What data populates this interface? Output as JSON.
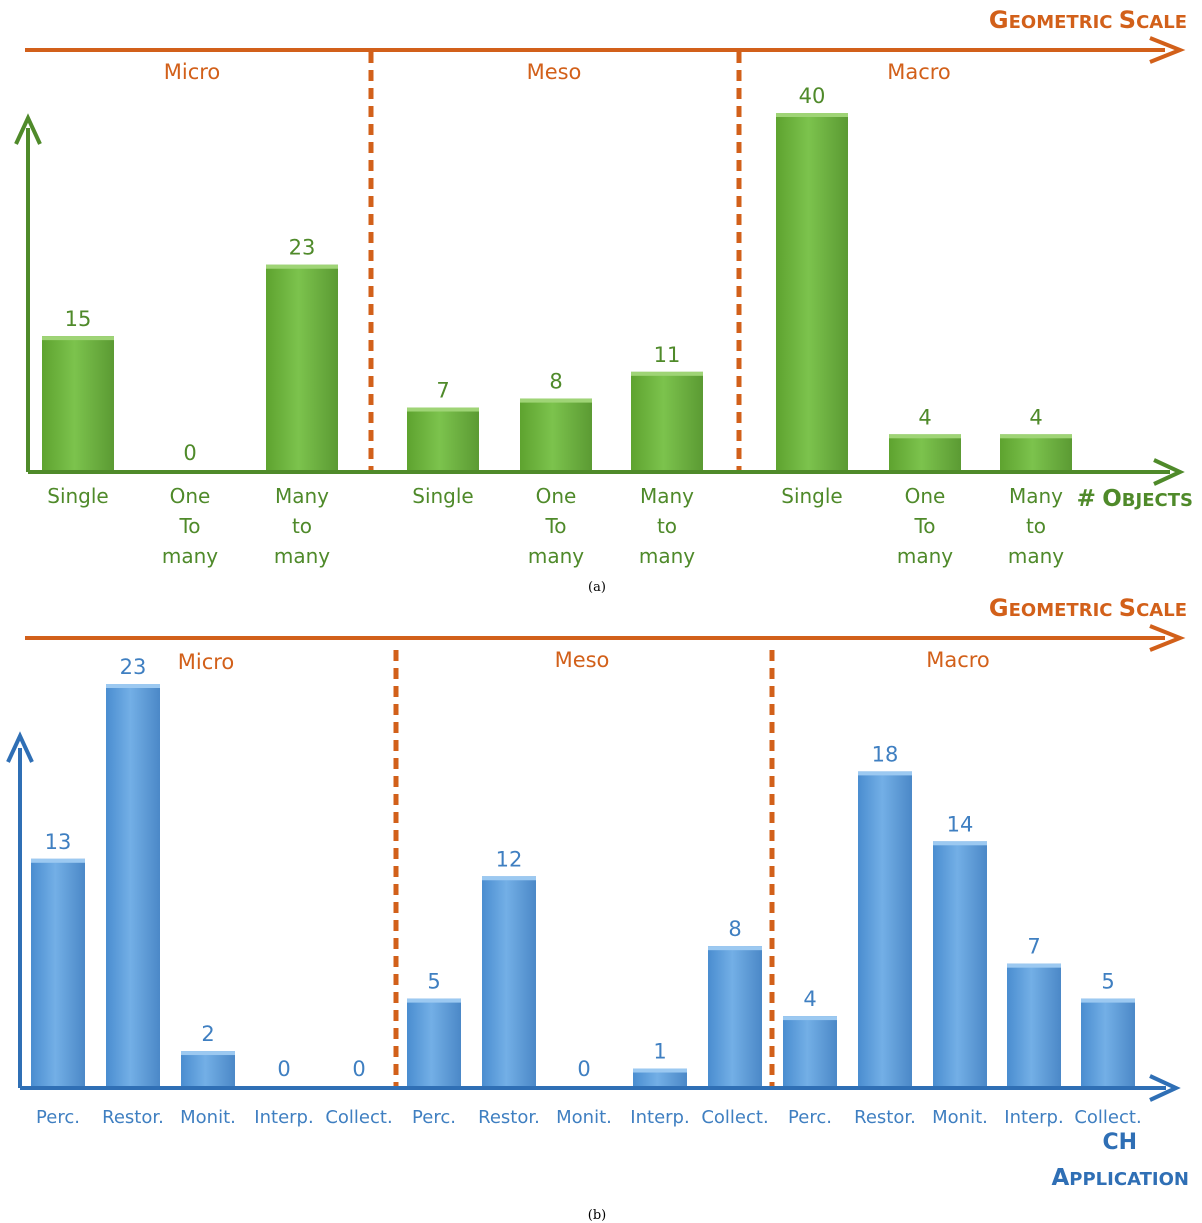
{
  "chart_data": [
    {
      "type": "bar",
      "caption": "(a)",
      "top_axis_label": "Geometric Scale",
      "x_axis_label": "# Objects",
      "groups": [
        "Micro",
        "Meso",
        "Macro"
      ],
      "categories": [
        [
          "Single"
        ],
        [
          "One",
          "To",
          "many"
        ],
        [
          "Many",
          "to",
          "many"
        ],
        [
          "Single"
        ],
        [
          "One",
          "To",
          "many"
        ],
        [
          "Many",
          "to",
          "many"
        ],
        [
          "Single"
        ],
        [
          "One",
          "To",
          "many"
        ],
        [
          "Many",
          "to",
          "many"
        ]
      ],
      "category_group": [
        0,
        0,
        0,
        1,
        1,
        1,
        2,
        2,
        2
      ],
      "values": [
        15,
        0,
        23,
        7,
        8,
        11,
        40,
        4,
        4
      ],
      "ylim": [
        0,
        40
      ],
      "bar_color": "#6db33f",
      "axis_color": "#4f8a2a",
      "grid": false
    },
    {
      "type": "bar",
      "caption": "(b)",
      "top_axis_label": "Geometric Scale",
      "x_axis_label": [
        "CH",
        "Application"
      ],
      "groups": [
        "Micro",
        "Meso",
        "Macro"
      ],
      "categories": [
        [
          "Perc."
        ],
        [
          "Restor."
        ],
        [
          "Monit."
        ],
        [
          "Interp."
        ],
        [
          "Collect."
        ],
        [
          "Perc."
        ],
        [
          "Restor."
        ],
        [
          "Monit."
        ],
        [
          "Interp."
        ],
        [
          "Collect."
        ],
        [
          "Perc."
        ],
        [
          "Restor."
        ],
        [
          "Monit."
        ],
        [
          "Interp."
        ],
        [
          "Collect."
        ]
      ],
      "category_group": [
        0,
        0,
        0,
        0,
        0,
        1,
        1,
        1,
        1,
        1,
        2,
        2,
        2,
        2,
        2
      ],
      "values": [
        13,
        23,
        2,
        0,
        0,
        5,
        12,
        0,
        1,
        8,
        4,
        18,
        14,
        7,
        5
      ],
      "ylim": [
        0,
        23
      ],
      "bar_color": "#5b9bd5",
      "axis_color": "#2f6fb5",
      "grid": false
    }
  ],
  "colors": {
    "scale_arrow": "#d2601a"
  }
}
